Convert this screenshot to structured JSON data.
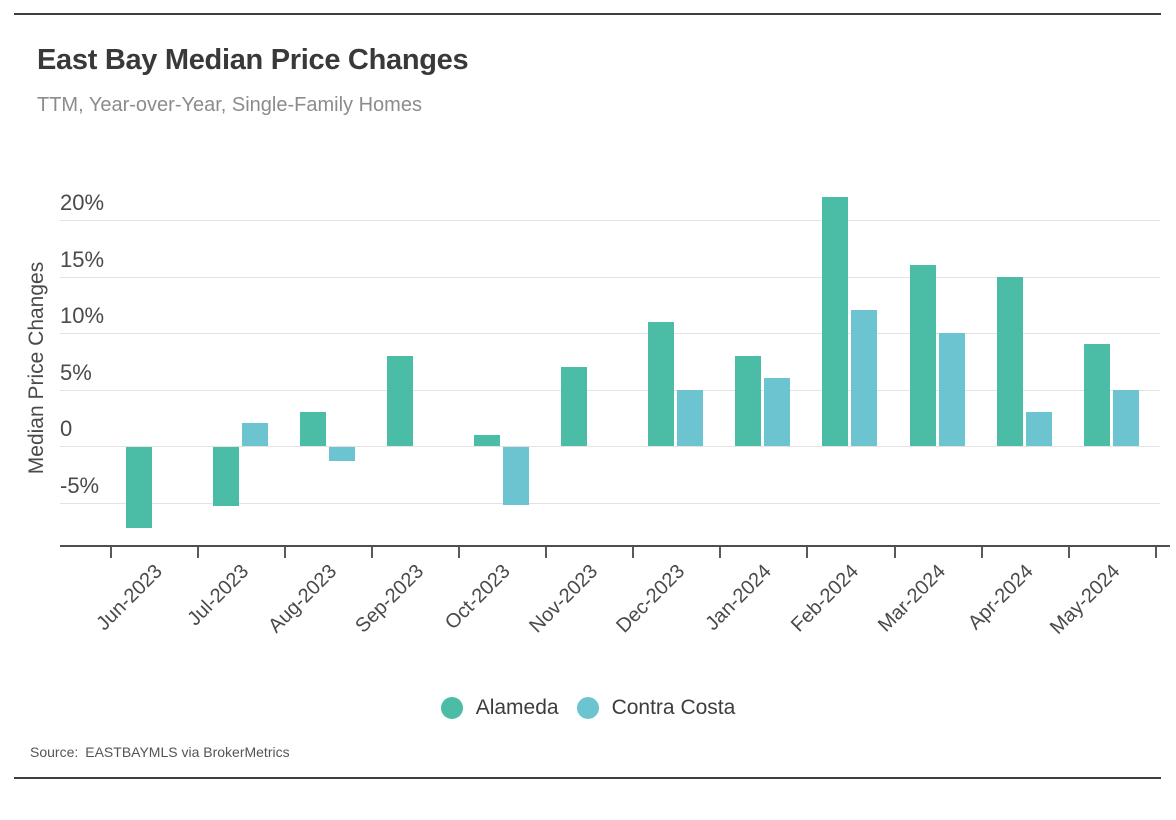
{
  "header": {
    "title": "East Bay Median Price Changes",
    "subtitle": "TTM, Year-over-Year, Single-Family Homes"
  },
  "chart_data": {
    "type": "bar",
    "title": "East Bay Median Price Changes",
    "subtitle": "TTM, Year-over-Year, Single-Family Homes",
    "ylabel": "Median Price Changes",
    "xlabel": "",
    "categories": [
      "Jun-2023",
      "Jul-2023",
      "Aug-2023",
      "Sep-2023",
      "Oct-2023",
      "Nov-2023",
      "Dec-2023",
      "Jan-2024",
      "Feb-2024",
      "Mar-2024",
      "Apr-2024",
      "May-2024"
    ],
    "series": [
      {
        "name": "Alameda",
        "color": "#4bbca6",
        "values": [
          -7.2,
          -5.2,
          3.0,
          8.0,
          1.0,
          7.0,
          11.0,
          8.0,
          22.0,
          16.0,
          15.0,
          9.0
        ]
      },
      {
        "name": "Contra Costa",
        "color": "#6cc4d1",
        "values": [
          null,
          2.0,
          -1.2,
          null,
          -5.1,
          null,
          5.0,
          6.0,
          12.0,
          10.0,
          3.0,
          5.0
        ]
      }
    ],
    "y_ticks": [
      "20%",
      "15%",
      "10%",
      "5%",
      "0",
      "-5%"
    ],
    "y_tick_values": [
      20,
      15,
      10,
      5,
      0,
      -5
    ],
    "ylim": [
      -8.8,
      23
    ],
    "grid": "horizontal",
    "legend_position": "bottom-center",
    "x_label_rotation_deg": 45,
    "bar_unit": "percent"
  },
  "footer": {
    "source_label": "Source:",
    "source_text": "EASTBAYMLS via BrokerMetrics"
  }
}
